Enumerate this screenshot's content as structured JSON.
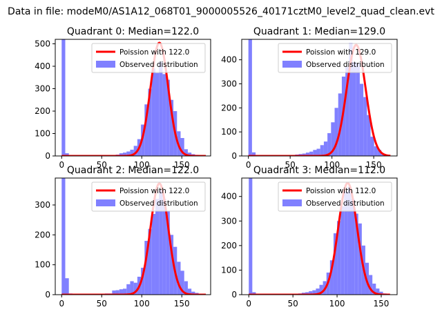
{
  "figure": {
    "suptitle": "Data in file: modeM0/AS1A12_068T01_9000005526_40171cztM0_level2_quad_clean.evt"
  },
  "colors": {
    "hist": "#8080ff",
    "fit": "#ff0000",
    "axis": "#000000",
    "background": "#ffffff"
  },
  "chart_data": [
    {
      "type": "bar",
      "title": "Quadrant 0: Median=122.0",
      "legend": {
        "placement": "top-right",
        "entries": [
          "Poission with 122.0",
          "Observed distribution"
        ]
      },
      "xlim": [
        -8,
        186
      ],
      "ylim": [
        0,
        520
      ],
      "xticks": [
        0,
        50,
        100,
        150
      ],
      "yticks": [
        0,
        100,
        200,
        300,
        400,
        500
      ],
      "bin_width": 4.5,
      "series": [
        {
          "name": "Observed distribution",
          "kind": "histogram",
          "x": [
            0,
            4.5,
            9,
            13.5,
            18,
            22.5,
            27,
            31.5,
            36,
            40.5,
            45,
            49.5,
            54,
            58.5,
            63,
            67.5,
            72,
            76.5,
            81,
            85.5,
            90,
            94.5,
            99,
            103.5,
            108,
            112.5,
            117,
            121.5,
            126,
            130.5,
            135,
            139.5,
            144,
            148.5,
            153,
            157.5,
            162,
            166.5,
            171,
            175.5
          ],
          "values": [
            520,
            12,
            4,
            3,
            3,
            2,
            2,
            2,
            2,
            2,
            2,
            3,
            3,
            3,
            4,
            6,
            12,
            15,
            20,
            28,
            45,
            75,
            140,
            230,
            300,
            390,
            370,
            420,
            365,
            340,
            250,
            200,
            110,
            80,
            30,
            15,
            8,
            5,
            3,
            2
          ]
        },
        {
          "name": "Poission with 122.0",
          "kind": "poisson-line",
          "lambda": 122.0,
          "peak": 505,
          "x_range": [
            0,
            180
          ]
        }
      ]
    },
    {
      "type": "bar",
      "title": "Quadrant 1: Median=129.0",
      "legend": {
        "placement": "top-right",
        "entries": [
          "Poission with 129.0",
          "Observed distribution"
        ]
      },
      "xlim": [
        -8,
        178
      ],
      "ylim": [
        0,
        485
      ],
      "xticks": [
        0,
        50,
        100,
        150
      ],
      "yticks": [
        0,
        100,
        200,
        300,
        400
      ],
      "bin_width": 4.3,
      "series": [
        {
          "name": "Observed distribution",
          "kind": "histogram",
          "x": [
            0,
            4.3,
            8.6,
            12.9,
            17.2,
            21.5,
            25.8,
            30.1,
            34.4,
            38.7,
            43,
            47.3,
            51.6,
            55.9,
            60.2,
            64.5,
            68.8,
            73.1,
            77.4,
            81.7,
            86,
            90.3,
            94.6,
            98.9,
            103.2,
            107.5,
            111.8,
            116.1,
            120.4,
            124.7,
            129,
            133.3,
            137.6,
            141.9,
            146.2,
            150.5,
            154.8,
            159.1,
            163.4
          ],
          "values": [
            485,
            15,
            4,
            3,
            3,
            2,
            2,
            2,
            2,
            2,
            3,
            3,
            4,
            6,
            8,
            10,
            14,
            18,
            25,
            30,
            45,
            60,
            95,
            140,
            200,
            260,
            330,
            370,
            470,
            390,
            385,
            300,
            245,
            170,
            80,
            40,
            25,
            10,
            5
          ]
        },
        {
          "name": "Poission with 129.0",
          "kind": "poisson-line",
          "lambda": 129.0,
          "peak": 462,
          "x_range": [
            0,
            170
          ]
        }
      ]
    },
    {
      "type": "bar",
      "title": "Quadrant 2: Median=122.0",
      "legend": {
        "placement": "top-right",
        "entries": [
          "Poission with 122.0",
          "Observed distribution"
        ]
      },
      "xlim": [
        -8,
        186
      ],
      "ylim": [
        0,
        390
      ],
      "xticks": [
        0,
        50,
        100,
        150
      ],
      "yticks": [
        0,
        100,
        200,
        300
      ],
      "bin_width": 4.5,
      "series": [
        {
          "name": "Observed distribution",
          "kind": "histogram",
          "x": [
            0,
            4.5,
            9,
            13.5,
            18,
            22.5,
            27,
            31.5,
            36,
            40.5,
            45,
            49.5,
            54,
            58.5,
            63,
            67.5,
            72,
            76.5,
            81,
            85.5,
            90,
            94.5,
            99,
            103.5,
            108,
            112.5,
            117,
            121.5,
            126,
            130.5,
            135,
            139.5,
            144,
            148.5,
            153,
            157.5,
            162,
            166.5,
            171,
            175.5
          ],
          "values": [
            390,
            55,
            4,
            3,
            3,
            2,
            2,
            2,
            2,
            2,
            2,
            3,
            4,
            4,
            14,
            15,
            18,
            20,
            35,
            45,
            40,
            60,
            90,
            180,
            220,
            270,
            320,
            350,
            320,
            280,
            200,
            160,
            110,
            80,
            45,
            20,
            10,
            6,
            3,
            2
          ]
        },
        {
          "name": "Poission with 122.0",
          "kind": "poisson-line",
          "lambda": 122.0,
          "peak": 372,
          "x_range": [
            0,
            180
          ]
        }
      ]
    },
    {
      "type": "bar",
      "title": "Quadrant 3: Median=112.0",
      "legend": {
        "placement": "top-right",
        "entries": [
          "Poission with 112.0",
          "Observed distribution"
        ]
      },
      "xlim": [
        -8,
        168
      ],
      "ylim": [
        0,
        475
      ],
      "xticks": [
        0,
        50,
        100,
        150
      ],
      "yticks": [
        0,
        100,
        200,
        300,
        400
      ],
      "bin_width": 4.0,
      "series": [
        {
          "name": "Observed distribution",
          "kind": "histogram",
          "x": [
            0,
            4,
            8,
            12,
            16,
            20,
            24,
            28,
            32,
            36,
            40,
            44,
            48,
            52,
            56,
            60,
            64,
            68,
            72,
            76,
            80,
            84,
            88,
            92,
            96,
            100,
            104,
            108,
            112,
            116,
            120,
            124,
            128,
            132,
            136,
            140,
            144,
            148,
            152
          ],
          "values": [
            475,
            10,
            4,
            3,
            3,
            2,
            2,
            2,
            2,
            2,
            2,
            3,
            3,
            4,
            5,
            8,
            10,
            14,
            18,
            25,
            40,
            55,
            90,
            140,
            250,
            300,
            360,
            420,
            440,
            390,
            330,
            290,
            200,
            130,
            80,
            45,
            25,
            12,
            5
          ]
        },
        {
          "name": "Poission with 112.0",
          "kind": "poisson-line",
          "lambda": 112.0,
          "peak": 455,
          "x_range": [
            0,
            160
          ]
        }
      ]
    }
  ]
}
